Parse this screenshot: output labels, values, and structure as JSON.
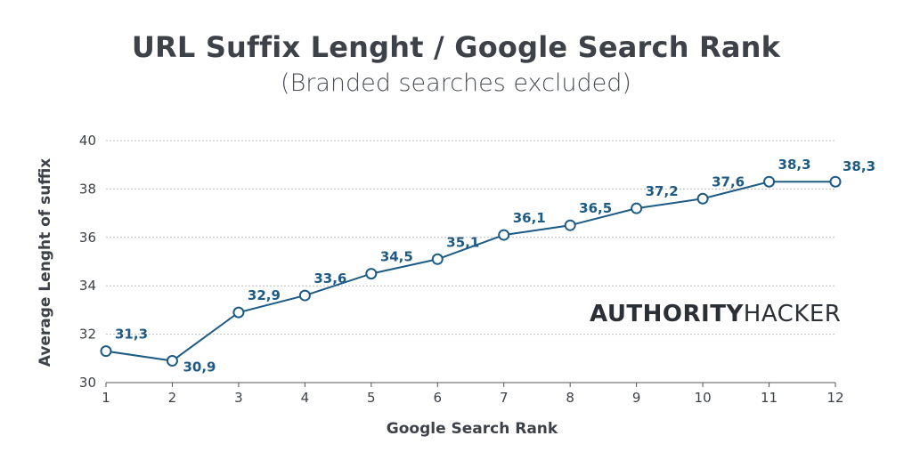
{
  "brand": {
    "strong": "AUTHORITY",
    "light": "HACKER"
  },
  "colors": {
    "line": "#1d5a84",
    "text": "#3d4148",
    "grid": "#bcbcbc"
  },
  "chart_data": {
    "type": "line",
    "title": "URL Suffix Lenght / Google Search Rank",
    "subtitle": "(Branded searches excluded)",
    "xlabel": "Google Search Rank",
    "ylabel": "Average Lenght of suffix",
    "x": [
      1,
      2,
      3,
      4,
      5,
      6,
      7,
      8,
      9,
      10,
      11,
      12
    ],
    "xticks": [
      "1",
      "2",
      "3",
      "4",
      "5",
      "6",
      "7",
      "8",
      "9",
      "10",
      "11",
      "12"
    ],
    "ylim": [
      30,
      40
    ],
    "yticks": [
      "30",
      "32",
      "34",
      "36",
      "38",
      "40"
    ],
    "grid": "horizontal-dotted",
    "series": [
      {
        "values": [
          31.3,
          30.9,
          32.9,
          33.6,
          34.5,
          35.1,
          36.1,
          36.5,
          37.2,
          37.6,
          38.3,
          38.3
        ],
        "labels": [
          "31,3",
          "30,9",
          "32,9",
          "33,6",
          "34,5",
          "35,1",
          "36,1",
          "36,5",
          "37,2",
          "37,6",
          "38,3",
          "38,3"
        ]
      }
    ]
  }
}
